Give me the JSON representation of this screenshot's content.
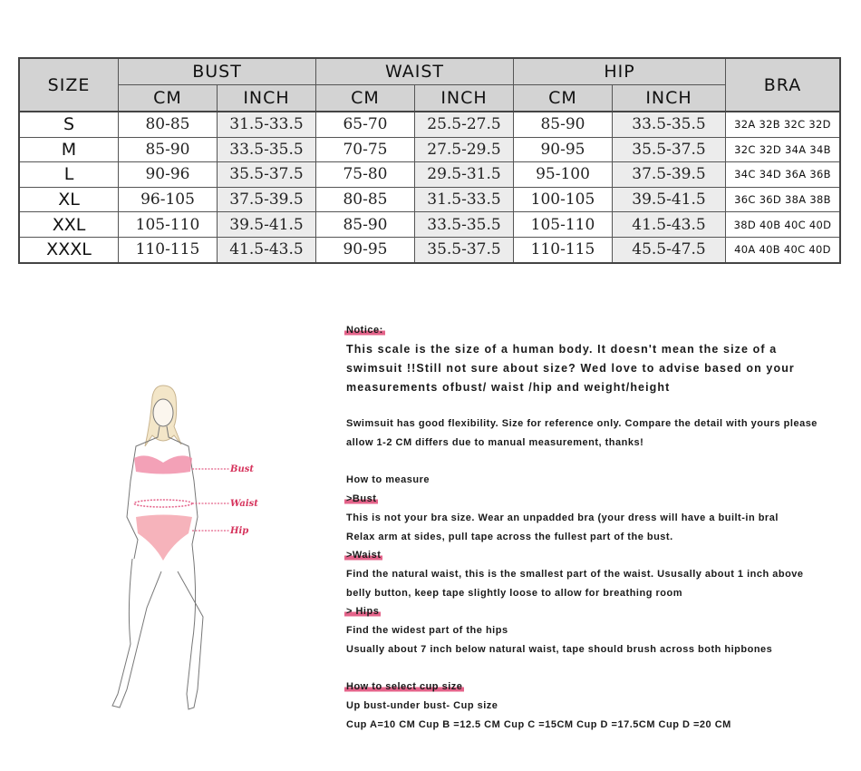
{
  "table": {
    "size_header": "SIZE",
    "groups": [
      "BUST",
      "WAIST",
      "HIP"
    ],
    "units": [
      "CM",
      "INCH",
      "CM",
      "INCH",
      "CM",
      "INCH"
    ],
    "bra_header": "BRA",
    "rows": [
      {
        "size": "S",
        "values": [
          "80-85",
          "31.5-33.5",
          "65-70",
          "25.5-27.5",
          "85-90",
          "33.5-35.5"
        ],
        "bra": "32A  32B  32C  32D"
      },
      {
        "size": "M",
        "values": [
          "85-90",
          "33.5-35.5",
          "70-75",
          "27.5-29.5",
          "90-95",
          "35.5-37.5"
        ],
        "bra": "32C  32D  34A  34B"
      },
      {
        "size": "L",
        "values": [
          "90-96",
          "35.5-37.5",
          "75-80",
          "29.5-31.5",
          "95-100",
          "37.5-39.5"
        ],
        "bra": "34C  34D  36A  36B"
      },
      {
        "size": "XL",
        "values": [
          "96-105",
          "37.5-39.5",
          "80-85",
          "31.5-33.5",
          "100-105",
          "39.5-41.5"
        ],
        "bra": "36C  36D  38A  38B"
      },
      {
        "size": "XXL",
        "values": [
          "105-110",
          "39.5-41.5",
          "85-90",
          "33.5-35.5",
          "105-110",
          "41.5-43.5"
        ],
        "bra": "38D  40B  40C  40D"
      },
      {
        "size": "XXXL",
        "values": [
          "110-115",
          "41.5-43.5",
          "90-95",
          "35.5-37.5",
          "110-115",
          "45.5-47.5"
        ],
        "bra": "40A  40B  40C  40D"
      }
    ]
  },
  "figure": {
    "labels": {
      "bust": "Bust",
      "waist": "Waist",
      "hip": "Hip"
    },
    "highlight_color": "#e4638a"
  },
  "notes": {
    "notice_title": "Notice:",
    "notice_lines": [
      "This scale is the size of a human body. It doesn't mean the size of a",
      "swimsuit !!Still not sure about size? Wed love to advise based on your",
      "measurements ofbust/ waist /hip and weight/height"
    ],
    "flex_lines": [
      "Swimsuit has good flexibility. Size for reference only. Compare the detail with yours please",
      "allow 1-2 CM differs due to manual measurement, thanks!"
    ],
    "how_to_measure": "How to measure",
    "bust_title": ">Bust",
    "bust_lines": [
      "This is not your bra size. Wear an unpadded bra (your dress will have a built-in bral",
      "Relax arm at sides, pull tape across the fullest part of the bust."
    ],
    "waist_title": ">Waist",
    "waist_lines": [
      "Find the natural waist, this is the smallest part of the waist. Ususally about 1 inch above",
      "belly button, keep tape slightly loose to allow for breathing room"
    ],
    "hips_title": "> Hips",
    "hips_lines": [
      "Find the widest part of the hips",
      "Usually about 7 inch below natural waist, tape should brush across both hipbones"
    ],
    "cup_title": "How to select cup size",
    "cup_lines": [
      "Up bust-under bust- Cup size",
      "Cup A=10 CM Cup B =12.5 CM Cup C =15CM Cup D =17.5CM Cup D =20 CM"
    ]
  }
}
